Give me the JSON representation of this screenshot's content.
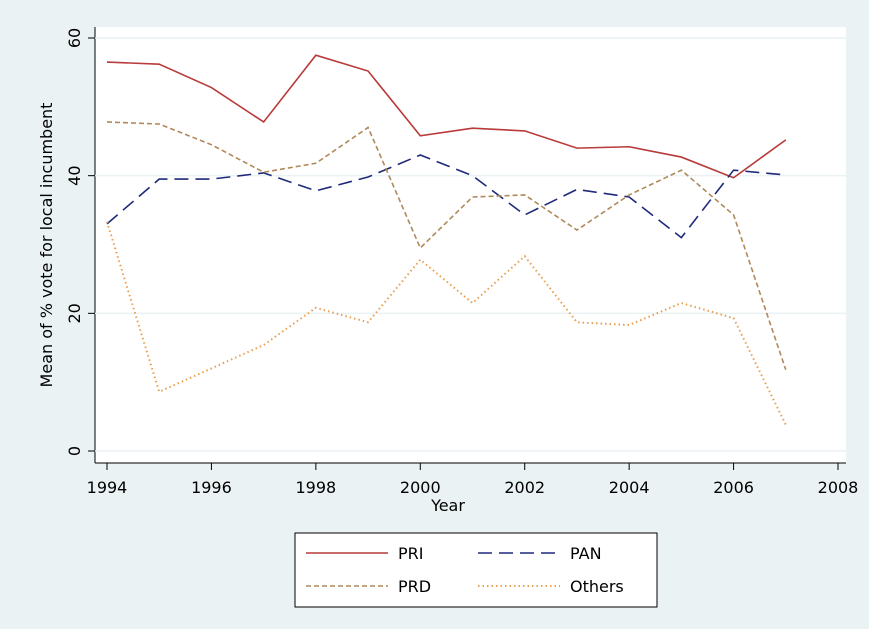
{
  "chart_data": {
    "type": "line",
    "x": [
      1994,
      1995,
      1996,
      1997,
      1998,
      1999,
      2000,
      2001,
      2002,
      2003,
      2004,
      2005,
      2006,
      2007
    ],
    "series": [
      {
        "name": "PRI",
        "color": "#b83a3a",
        "dash": "solid",
        "values": [
          56.5,
          56.2,
          52.8,
          47.8,
          57.5,
          55.2,
          45.8,
          46.9,
          46.5,
          44.0,
          44.2,
          42.7,
          39.7,
          45.2
        ]
      },
      {
        "name": "PAN",
        "color": "#1f2a7a",
        "dash": "long",
        "values": [
          33.0,
          39.5,
          39.5,
          40.4,
          37.8,
          39.8,
          43.0,
          40.0,
          34.3,
          38.0,
          36.9,
          31.0,
          40.8,
          40.1
        ]
      },
      {
        "name": "PRD",
        "color": "#b0895a",
        "dash": "short",
        "values": [
          47.8,
          47.5,
          44.5,
          40.5,
          41.8,
          47.0,
          29.5,
          36.9,
          37.2,
          32.1,
          37.2,
          40.8,
          34.3,
          11.8
        ]
      },
      {
        "name": "Others",
        "color": "#e8a050",
        "dash": "dot",
        "values": [
          33.3,
          8.6,
          12.0,
          15.4,
          20.8,
          18.7,
          27.8,
          21.5,
          28.3,
          18.7,
          18.3,
          21.5,
          19.3,
          3.8
        ]
      }
    ],
    "xlabel": "Year",
    "ylabel": "Mean of % vote for local incumbent",
    "xlim": [
      1994,
      2008
    ],
    "xticks": [
      1994,
      1996,
      1998,
      2000,
      2002,
      2004,
      2006,
      2008
    ],
    "ylim": [
      0,
      60
    ],
    "yticks": [
      0,
      20,
      40,
      60
    ],
    "grid": true,
    "legend": "bottom"
  }
}
